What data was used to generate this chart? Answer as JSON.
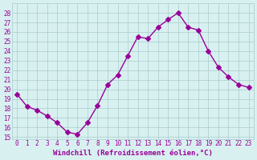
{
  "x": [
    0,
    1,
    2,
    3,
    4,
    5,
    6,
    7,
    8,
    9,
    10,
    11,
    12,
    13,
    14,
    15,
    16,
    17,
    18,
    19,
    20,
    21,
    22,
    23
  ],
  "y": [
    19.5,
    18.2,
    17.8,
    17.2,
    16.5,
    15.5,
    15.3,
    16.5,
    18.3,
    20.5,
    21.5,
    23.5,
    25.5,
    25.3,
    26.5,
    27.3,
    28.0,
    26.5,
    26.2,
    24.0,
    22.3,
    21.3,
    20.5,
    20.2
  ],
  "line_color": "#990099",
  "marker": "D",
  "marker_size": 3,
  "bg_color": "#d8f0f0",
  "grid_color": "#aacccc",
  "xlabel": "Windchill (Refroidissement éolien,°C)",
  "xlabel_color": "#990099",
  "yticks": [
    15,
    16,
    17,
    18,
    19,
    20,
    21,
    22,
    23,
    24,
    25,
    26,
    27,
    28
  ],
  "xticks": [
    0,
    1,
    2,
    3,
    4,
    5,
    6,
    7,
    8,
    9,
    10,
    11,
    12,
    13,
    14,
    15,
    16,
    17,
    18,
    19,
    20,
    21,
    22,
    23
  ],
  "ylim": [
    14.8,
    29.0
  ],
  "xlim": [
    -0.5,
    23.5
  ]
}
